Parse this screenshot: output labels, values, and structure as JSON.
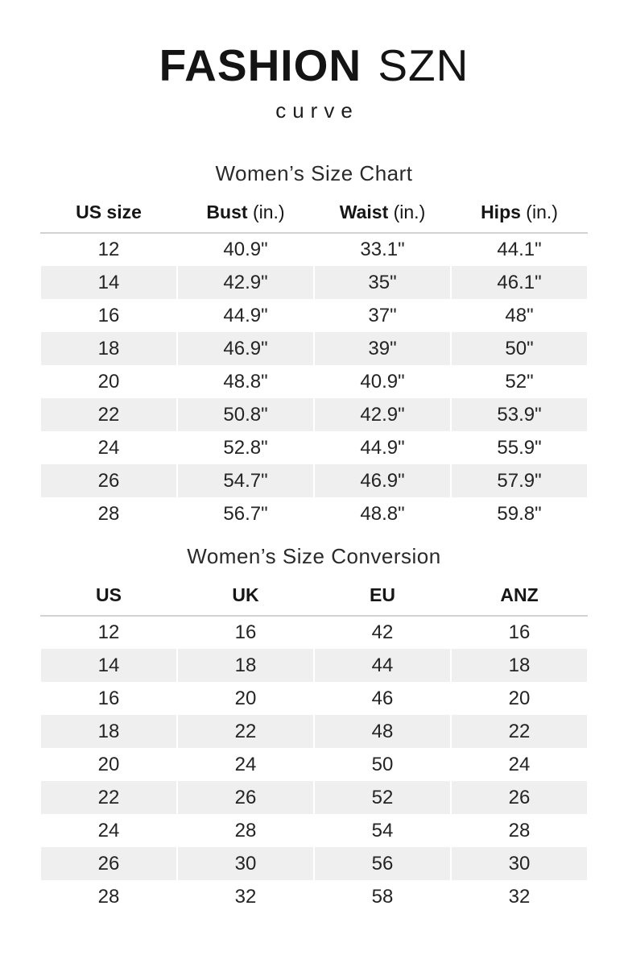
{
  "brand": {
    "name_primary": "FASHION",
    "name_secondary": "SZN",
    "subtitle": "curve"
  },
  "size_chart": {
    "title": "Women’s Size Chart",
    "columns": [
      {
        "name": "US size",
        "unit": ""
      },
      {
        "name": "Bust",
        "unit": "(in.)"
      },
      {
        "name": "Waist",
        "unit": "(in.)"
      },
      {
        "name": "Hips",
        "unit": "(in.)"
      }
    ],
    "rows": [
      [
        "12",
        "40.9\"",
        "33.1\"",
        "44.1\""
      ],
      [
        "14",
        "42.9\"",
        "35\"",
        "46.1\""
      ],
      [
        "16",
        "44.9\"",
        "37\"",
        "48\""
      ],
      [
        "18",
        "46.9\"",
        "39\"",
        "50\""
      ],
      [
        "20",
        "48.8\"",
        "40.9\"",
        "52\""
      ],
      [
        "22",
        "50.8\"",
        "42.9\"",
        "53.9\""
      ],
      [
        "24",
        "52.8\"",
        "44.9\"",
        "55.9\""
      ],
      [
        "26",
        "54.7\"",
        "46.9\"",
        "57.9\""
      ],
      [
        "28",
        "56.7\"",
        "48.8\"",
        "59.8\""
      ]
    ]
  },
  "conversion_chart": {
    "title": "Women’s Size Conversion",
    "columns": [
      {
        "name": "US",
        "unit": ""
      },
      {
        "name": "UK",
        "unit": ""
      },
      {
        "name": "EU",
        "unit": ""
      },
      {
        "name": "ANZ",
        "unit": ""
      }
    ],
    "rows": [
      [
        "12",
        "16",
        "42",
        "16"
      ],
      [
        "14",
        "18",
        "44",
        "18"
      ],
      [
        "16",
        "20",
        "46",
        "20"
      ],
      [
        "18",
        "22",
        "48",
        "22"
      ],
      [
        "20",
        "24",
        "50",
        "24"
      ],
      [
        "22",
        "26",
        "52",
        "26"
      ],
      [
        "24",
        "28",
        "54",
        "28"
      ],
      [
        "26",
        "30",
        "56",
        "30"
      ],
      [
        "28",
        "32",
        "58",
        "32"
      ]
    ]
  },
  "colors": {
    "stripe": "#efefef",
    "rule": "#d2d2d2",
    "text": "#222222",
    "heading": "#141414"
  }
}
